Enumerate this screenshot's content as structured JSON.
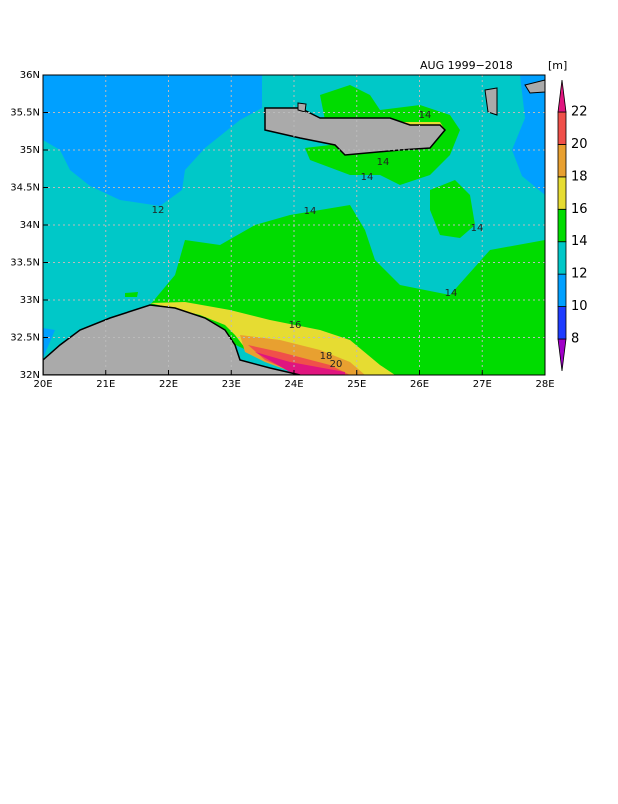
{
  "title": "AUG 1999−2018",
  "units": "[m]",
  "x_axis": {
    "ticks": [
      {
        "value": 20,
        "label": "20E"
      },
      {
        "value": 21,
        "label": "21E"
      },
      {
        "value": 22,
        "label": "22E"
      },
      {
        "value": 23,
        "label": "23E"
      },
      {
        "value": 24,
        "label": "24E"
      },
      {
        "value": 25,
        "label": "25E"
      },
      {
        "value": 26,
        "label": "26E"
      },
      {
        "value": 27,
        "label": "27E"
      },
      {
        "value": 28,
        "label": "28E"
      }
    ]
  },
  "y_axis": {
    "ticks": [
      {
        "value": 32,
        "label": "32N"
      },
      {
        "value": 32.5,
        "label": "32.5N"
      },
      {
        "value": 33,
        "label": "33N"
      },
      {
        "value": 33.5,
        "label": "33.5N"
      },
      {
        "value": 34,
        "label": "34N"
      },
      {
        "value": 34.5,
        "label": "34.5N"
      },
      {
        "value": 35,
        "label": "35N"
      },
      {
        "value": 35.5,
        "label": "35.5N"
      },
      {
        "value": 36,
        "label": "36N"
      }
    ]
  },
  "grid": true,
  "colorbar": {
    "levels": [
      8,
      10,
      12,
      14,
      16,
      18,
      20,
      22
    ],
    "colors": [
      "#a000c8",
      "#1e3cff",
      "#00a0ff",
      "#00c8c8",
      "#00dc00",
      "#e6dc32",
      "#e8a030",
      "#f0504a",
      "#e0157f"
    ]
  },
  "contour_labels": [
    "14",
    "14",
    "14",
    "14",
    "14",
    "14",
    "12",
    "16",
    "18",
    "20"
  ]
}
